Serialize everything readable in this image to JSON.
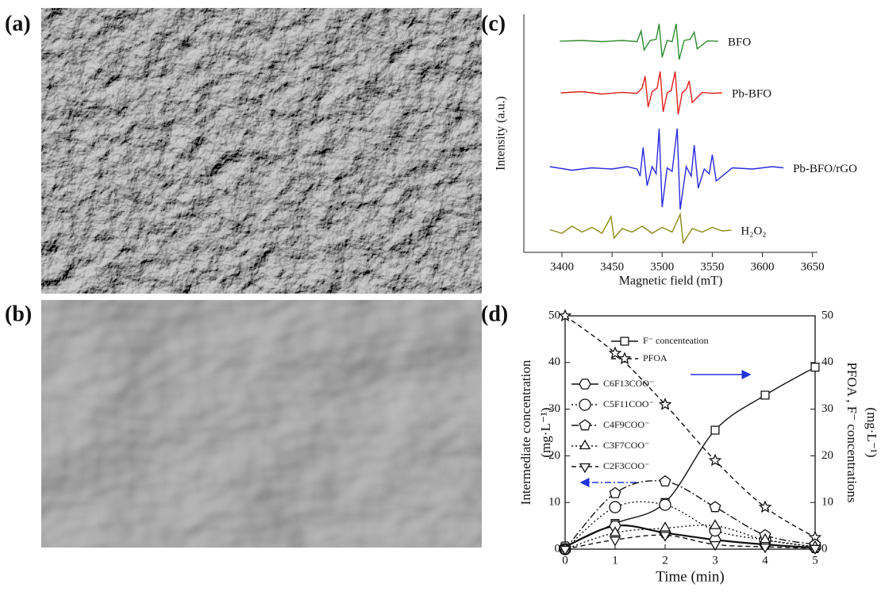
{
  "panel_labels": [
    "(a)",
    "(b)",
    "(c)",
    "(d)"
  ],
  "chart_data": [
    {
      "type": "line",
      "xlabel": "Magnetic field (mT)",
      "ylabel": "Intensity (a.u.)",
      "xlim": [
        3362,
        3655
      ],
      "xticks": [
        3400,
        3450,
        3500,
        3550,
        3600,
        3650
      ],
      "ylim": [
        0,
        10
      ],
      "smooth": false,
      "series": [
        {
          "name": "BFO",
          "color": "#2e8b2e",
          "x": [
            3398,
            3420,
            3440,
            3460,
            3475,
            3479,
            3482,
            3488,
            3494,
            3497,
            3500,
            3505,
            3510,
            3514,
            3517,
            3522,
            3528,
            3532,
            3535,
            3545,
            3556
          ],
          "values": [
            8.87,
            8.9,
            8.85,
            8.9,
            8.85,
            9.3,
            8.5,
            8.9,
            8.95,
            9.6,
            8.2,
            8.9,
            8.85,
            9.6,
            8.1,
            8.9,
            8.95,
            9.25,
            8.55,
            8.88,
            8.87
          ]
        },
        {
          "name": "Pb-BFO",
          "color": "#e0201a",
          "x": [
            3399,
            3420,
            3440,
            3460,
            3475,
            3480,
            3483,
            3486,
            3490,
            3495,
            3498,
            3501,
            3505,
            3509,
            3513,
            3516,
            3520,
            3524,
            3527,
            3530,
            3540,
            3550,
            3560
          ],
          "values": [
            6.7,
            6.75,
            6.65,
            6.72,
            6.68,
            6.9,
            7.4,
            6.1,
            6.75,
            6.9,
            7.6,
            5.9,
            6.7,
            6.8,
            7.6,
            5.8,
            6.7,
            6.85,
            7.2,
            6.3,
            6.72,
            6.68,
            6.7
          ]
        },
        {
          "name": "Pb-BFO/rGO",
          "color": "#2a2ae0",
          "x": [
            3388,
            3410,
            3430,
            3450,
            3465,
            3475,
            3478,
            3481,
            3485,
            3490,
            3494,
            3497,
            3500,
            3505,
            3510,
            3515,
            3518,
            3524,
            3529,
            3532,
            3536,
            3542,
            3547,
            3550,
            3554,
            3570,
            3590,
            3610,
            3621
          ],
          "values": [
            3.6,
            3.45,
            3.55,
            3.5,
            3.6,
            3.5,
            3.2,
            4.4,
            2.8,
            3.6,
            3.3,
            5.2,
            1.9,
            3.55,
            3.4,
            5.2,
            1.8,
            3.6,
            3.2,
            4.5,
            2.7,
            3.5,
            3.3,
            4.1,
            3.0,
            3.55,
            3.5,
            3.6,
            3.55
          ]
        },
        {
          "name": "H₂O₂",
          "color": "#8a8a1a",
          "x": [
            3388,
            3400,
            3410,
            3420,
            3430,
            3440,
            3449,
            3452,
            3460,
            3470,
            3480,
            3490,
            3500,
            3510,
            3518,
            3521,
            3530,
            3540,
            3550,
            3560,
            3569
          ],
          "values": [
            0.95,
            0.8,
            1.1,
            0.85,
            1.05,
            0.8,
            1.5,
            0.6,
            1.0,
            0.85,
            1.1,
            0.8,
            1.05,
            0.85,
            1.6,
            0.4,
            1.0,
            0.85,
            1.05,
            0.9,
            0.93
          ]
        }
      ]
    },
    {
      "type": "line",
      "xlabel": "Time (min)",
      "ylabel": [
        "Intermediate concentration",
        "(mg·L⁻¹)"
      ],
      "y2label": [
        "PFOA , F⁻ concentrations",
        "(mg·L⁻¹)"
      ],
      "x": [
        0,
        1,
        2,
        3,
        4,
        5
      ],
      "xlim": [
        0,
        5
      ],
      "xticks": [
        0,
        1,
        2,
        3,
        4,
        5
      ],
      "ylim": [
        0,
        50
      ],
      "yticks": [
        0,
        10,
        20,
        30,
        40,
        50
      ],
      "y2lim": [
        0,
        50
      ],
      "y2ticks": [
        0,
        10,
        20,
        30,
        40,
        50
      ],
      "smooth": true,
      "series": [
        {
          "name": "F⁻ concenteation",
          "color": "#111111",
          "marker": "square",
          "dash": "solid",
          "axis": "y2",
          "values": [
            0.5,
            5.5,
            10,
            25.5,
            33,
            39
          ]
        },
        {
          "name": "PFOA",
          "color": "#111111",
          "marker": "star",
          "dash": "dashed",
          "axis": "y2",
          "values": [
            50,
            42,
            31,
            19,
            9,
            2.5
          ]
        },
        {
          "name": "C6F13COO⁻",
          "color": "#111111",
          "marker": "hexagon",
          "dash": "solid",
          "values": [
            0.5,
            5,
            3.5,
            2,
            1,
            0.3
          ]
        },
        {
          "name": "C5F11COO⁻",
          "color": "#111111",
          "marker": "circle",
          "dash": "dotted",
          "values": [
            0,
            9,
            9.5,
            4,
            2,
            0.5
          ]
        },
        {
          "name": "C4F9COO⁻",
          "color": "#111111",
          "marker": "pentagon",
          "dash": "dashdot",
          "values": [
            0,
            12,
            14.5,
            9,
            3,
            1
          ]
        },
        {
          "name": "C3F7COO⁻",
          "color": "#111111",
          "marker": "triangle",
          "dash": "dotted",
          "values": [
            0,
            3.5,
            4.5,
            5,
            2,
            0.5
          ]
        },
        {
          "name": "C2F3COO⁻",
          "color": "#111111",
          "marker": "triangle-down",
          "dash": "dashed",
          "values": [
            0,
            2,
            3,
            1,
            0.5,
            0.2
          ]
        }
      ]
    }
  ]
}
